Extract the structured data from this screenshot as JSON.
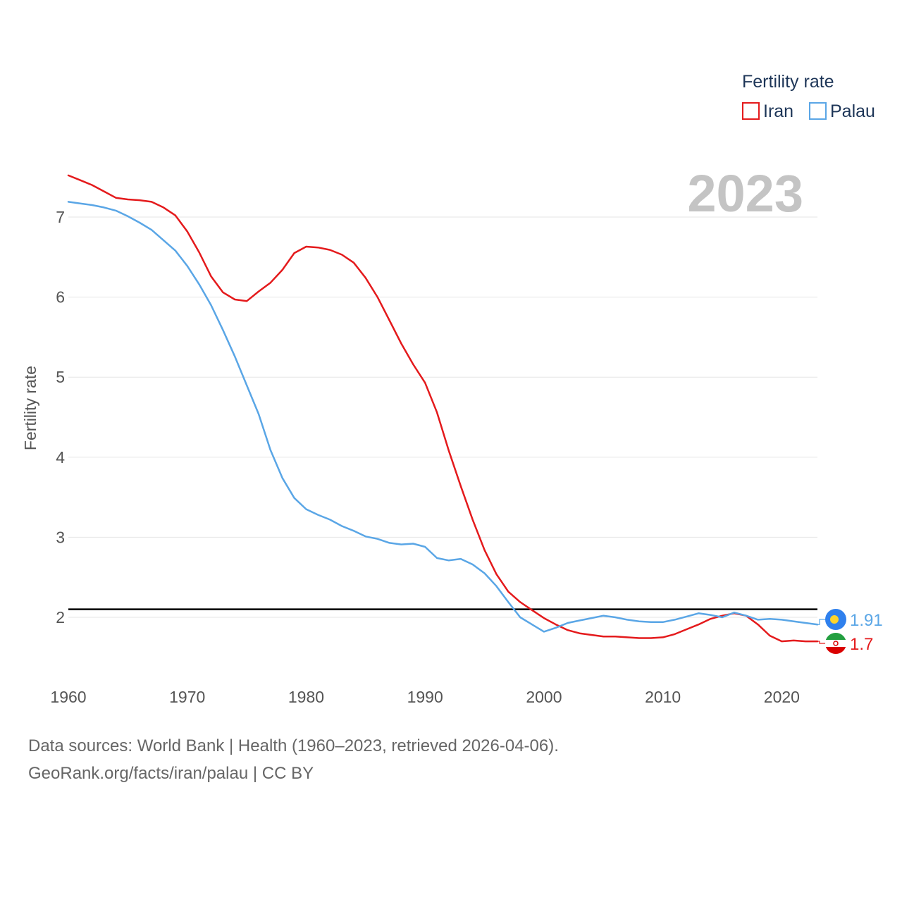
{
  "chart_data": {
    "type": "line",
    "title": "",
    "year_label": "2023",
    "ylabel": "Fertility rate",
    "xlabel": "",
    "xlim": [
      1960,
      2023
    ],
    "ylim": [
      1.3,
      7.6
    ],
    "x_ticks": [
      1960,
      1970,
      1980,
      1990,
      2000,
      2010,
      2020
    ],
    "y_ticks": [
      2,
      3,
      4,
      5,
      6,
      7
    ],
    "reference_line": 2.1,
    "legend": {
      "title": "Fertility rate",
      "position": "top-right"
    },
    "x": [
      1960,
      1961,
      1962,
      1963,
      1964,
      1965,
      1966,
      1967,
      1968,
      1969,
      1970,
      1971,
      1972,
      1973,
      1974,
      1975,
      1976,
      1977,
      1978,
      1979,
      1980,
      1981,
      1982,
      1983,
      1984,
      1985,
      1986,
      1987,
      1988,
      1989,
      1990,
      1991,
      1992,
      1993,
      1994,
      1995,
      1996,
      1997,
      1998,
      1999,
      2000,
      2001,
      2002,
      2003,
      2004,
      2005,
      2006,
      2007,
      2008,
      2009,
      2010,
      2011,
      2012,
      2013,
      2014,
      2015,
      2016,
      2017,
      2018,
      2019,
      2020,
      2021,
      2022,
      2023
    ],
    "series": [
      {
        "name": "Iran",
        "color": "#e41a1c",
        "end_label": "1.7",
        "values": [
          7.52,
          7.46,
          7.4,
          7.32,
          7.24,
          7.22,
          7.21,
          7.19,
          7.12,
          7.02,
          6.82,
          6.56,
          6.26,
          6.06,
          5.97,
          5.95,
          6.07,
          6.18,
          6.34,
          6.55,
          6.63,
          6.62,
          6.59,
          6.53,
          6.43,
          6.24,
          6.0,
          5.71,
          5.42,
          5.16,
          4.93,
          4.56,
          4.08,
          3.64,
          3.22,
          2.84,
          2.54,
          2.32,
          2.19,
          2.09,
          1.99,
          1.91,
          1.84,
          1.8,
          1.78,
          1.76,
          1.76,
          1.75,
          1.74,
          1.74,
          1.75,
          1.79,
          1.85,
          1.91,
          1.98,
          2.02,
          2.05,
          2.02,
          1.91,
          1.77,
          1.7,
          1.71,
          1.7,
          1.7
        ]
      },
      {
        "name": "Palau",
        "color": "#5aa6e6",
        "end_label": "1.91",
        "values": [
          7.19,
          7.17,
          7.15,
          7.12,
          7.08,
          7.01,
          6.93,
          6.84,
          6.71,
          6.58,
          6.39,
          6.16,
          5.9,
          5.59,
          5.26,
          4.9,
          4.54,
          4.09,
          3.74,
          3.49,
          3.35,
          3.28,
          3.22,
          3.14,
          3.08,
          3.01,
          2.98,
          2.93,
          2.91,
          2.92,
          2.88,
          2.74,
          2.71,
          2.73,
          2.66,
          2.55,
          2.39,
          2.19,
          2.0,
          1.91,
          1.82,
          1.87,
          1.93,
          1.96,
          1.99,
          2.02,
          2.0,
          1.97,
          1.95,
          1.94,
          1.94,
          1.97,
          2.01,
          2.05,
          2.03,
          2.0,
          2.06,
          2.02,
          1.97,
          1.98,
          1.97,
          1.95,
          1.93,
          1.91
        ]
      }
    ]
  },
  "sources": {
    "line1": "Data sources: World Bank | Health (1960–2023, retrieved 2026-04-06).",
    "line2": "GeoRank.org/facts/iran/palau | CC BY"
  },
  "icons": {
    "iran_flag": "iran-flag-icon",
    "palau_flag": "palau-flag-icon"
  }
}
